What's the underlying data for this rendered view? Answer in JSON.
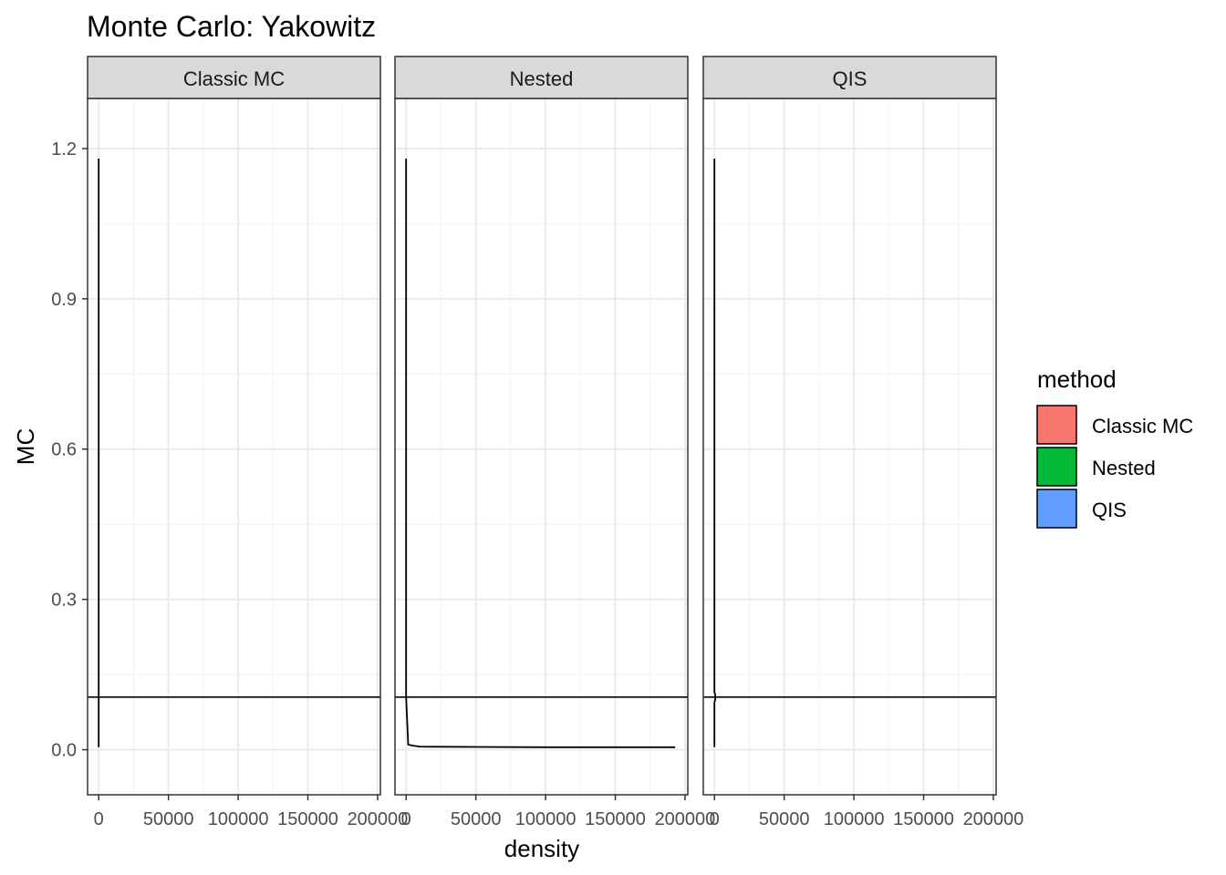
{
  "chart_data": {
    "type": "line",
    "title": "Monte Carlo: Yakowitz",
    "xlabel": "density",
    "ylabel": "MC",
    "xlim": [
      -8000,
      202000
    ],
    "ylim": [
      -0.09,
      1.3
    ],
    "x_ticks": [
      0,
      50000,
      100000,
      150000,
      200000
    ],
    "x_tick_labels": [
      "0",
      "50000",
      "100000",
      "150000",
      "200000"
    ],
    "y_ticks": [
      0.0,
      0.3,
      0.6,
      0.9,
      1.2
    ],
    "y_tick_labels": [
      "0.0",
      "0.3",
      "0.6",
      "0.9",
      "1.2"
    ],
    "reference_line": {
      "y": 0.105,
      "orientation": "horizontal",
      "color": "#000000"
    },
    "grid": true,
    "theme": "bw",
    "legend": {
      "title": "method",
      "position": "right",
      "entries": [
        {
          "label": "Classic MC",
          "color": "#F8766D"
        },
        {
          "label": "Nested",
          "color": "#00BA38"
        },
        {
          "label": "QIS",
          "color": "#619CFF"
        }
      ]
    },
    "facets": [
      {
        "strip": "Classic MC",
        "series": {
          "name": "Classic MC",
          "x": [
            0,
            0,
            0
          ],
          "y": [
            0.005,
            0.105,
            1.18
          ]
        }
      },
      {
        "strip": "Nested",
        "series": {
          "name": "Nested",
          "x": [
            0,
            0,
            1500,
            5000,
            10000,
            50000,
            100000,
            150000,
            193000
          ],
          "y": [
            1.18,
            0.105,
            0.01,
            0.008,
            0.006,
            0.0055,
            0.005,
            0.005,
            0.005
          ]
        }
      },
      {
        "strip": "QIS",
        "series": {
          "name": "QIS",
          "x": [
            0,
            0,
            600,
            600,
            0,
            0
          ],
          "y": [
            1.18,
            0.115,
            0.11,
            0.1,
            0.095,
            0.005
          ]
        }
      }
    ]
  }
}
